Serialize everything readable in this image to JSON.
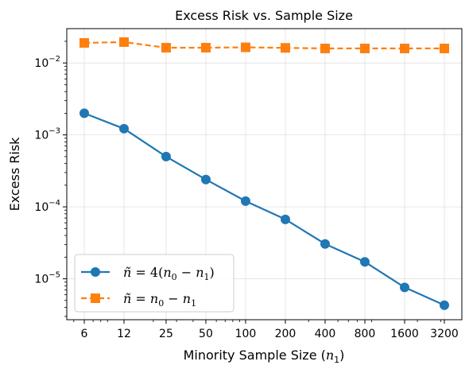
{
  "chart_data": {
    "type": "line",
    "title": "Excess Risk vs. Sample Size",
    "xlabel": "Minority Sample Size (n₁)",
    "ylabel": "Excess Risk",
    "x_scale": "log2",
    "y_scale": "log10",
    "categories": [
      "6",
      "12",
      "25",
      "50",
      "100",
      "200",
      "400",
      "800",
      "1600",
      "3200"
    ],
    "x": [
      6,
      12,
      25,
      50,
      100,
      200,
      400,
      800,
      1600,
      3200
    ],
    "ylim": [
      2.7e-06,
      0.03
    ],
    "y_ticks": [
      {
        "value": 1e-05,
        "mant": "10",
        "exp": "−5"
      },
      {
        "value": 0.0001,
        "mant": "10",
        "exp": "−4"
      },
      {
        "value": 0.001,
        "mant": "10",
        "exp": "−3"
      },
      {
        "value": 0.01,
        "mant": "10",
        "exp": "−2"
      }
    ],
    "grid": true,
    "legend_position": "lower-left",
    "series": [
      {
        "name": "ñ = 4(n₀ − n₁)",
        "color": "#1f77b4",
        "marker": "circle",
        "linestyle": "solid",
        "values": [
          0.002,
          0.00122,
          0.0005,
          0.00024,
          0.00012,
          6.7e-05,
          3.05e-05,
          1.72e-05,
          7.6e-06,
          4.3e-06
        ]
      },
      {
        "name": "ñ = n₀ − n₁",
        "color": "#ff7f0e",
        "marker": "square",
        "linestyle": "dashed",
        "values": [
          0.019,
          0.0195,
          0.0163,
          0.0163,
          0.0165,
          0.0162,
          0.0159,
          0.0159,
          0.0159,
          0.0159
        ]
      }
    ]
  }
}
